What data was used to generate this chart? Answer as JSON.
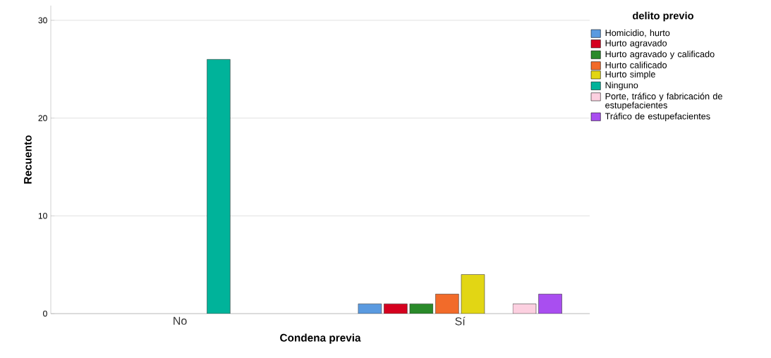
{
  "chart_data": {
    "type": "bar",
    "xlabel": "Condena previa",
    "ylabel": "Recuento",
    "legend_title": "delito previo",
    "categories": [
      "No",
      "Sí"
    ],
    "series": [
      {
        "name": "Homicidio, hurto",
        "color": "#5a9ae0",
        "values": [
          null,
          1
        ]
      },
      {
        "name": "Hurto agravado",
        "color": "#d5001f",
        "values": [
          null,
          1
        ]
      },
      {
        "name": "Hurto agravado y calificado",
        "color": "#2a8a2a",
        "values": [
          null,
          1
        ]
      },
      {
        "name": "Hurto calificado",
        "color": "#f26b2a",
        "values": [
          null,
          2
        ]
      },
      {
        "name": "Hurto simple",
        "color": "#e2d614",
        "values": [
          null,
          4
        ]
      },
      {
        "name": "Ninguno",
        "color": "#00b39a",
        "values": [
          26,
          null
        ]
      },
      {
        "name": "Porte, tráfico y fabricación de estupefacientes",
        "color": "#fcd0e0",
        "values": [
          null,
          1
        ]
      },
      {
        "name": "Tráfico de estupefacientes",
        "color": "#a94ef0",
        "values": [
          null,
          2
        ]
      }
    ],
    "ylim": [
      0,
      31.5
    ],
    "yticks": [
      0,
      10,
      20,
      30
    ],
    "grid": "y",
    "legend": "right"
  }
}
